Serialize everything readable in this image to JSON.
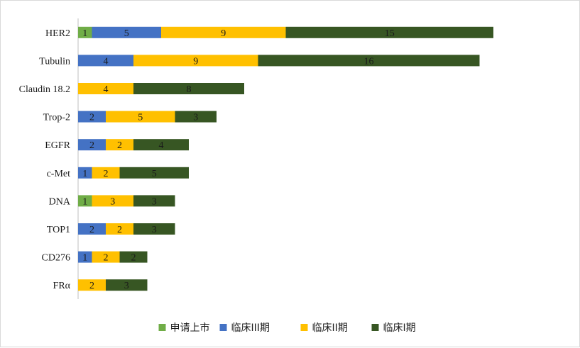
{
  "chart_data": {
    "type": "bar",
    "orientation": "horizontal",
    "stacked": true,
    "categories": [
      "HER2",
      "Tubulin",
      "Claudin 18.2",
      "Trop-2",
      "EGFR",
      "c-Met",
      "DNA",
      "TOP1",
      "CD276",
      "FRα"
    ],
    "series": [
      {
        "name": "申请上市",
        "color": "#70ad47",
        "values": [
          1,
          0,
          0,
          0,
          0,
          0,
          1,
          0,
          0,
          0
        ]
      },
      {
        "name": "临床III期",
        "color": "#4472c4",
        "values": [
          5,
          4,
          0,
          2,
          2,
          1,
          0,
          2,
          1,
          0
        ]
      },
      {
        "name": "临床II期",
        "color": "#ffc000",
        "values": [
          9,
          9,
          4,
          5,
          2,
          2,
          3,
          2,
          2,
          2
        ]
      },
      {
        "name": "临床I期",
        "color": "#375623",
        "values": [
          15,
          16,
          8,
          3,
          4,
          5,
          3,
          3,
          2,
          3
        ]
      }
    ],
    "xlim": [
      0,
      36
    ],
    "grid": false,
    "data_labels": true,
    "legend_position": "bottom"
  }
}
